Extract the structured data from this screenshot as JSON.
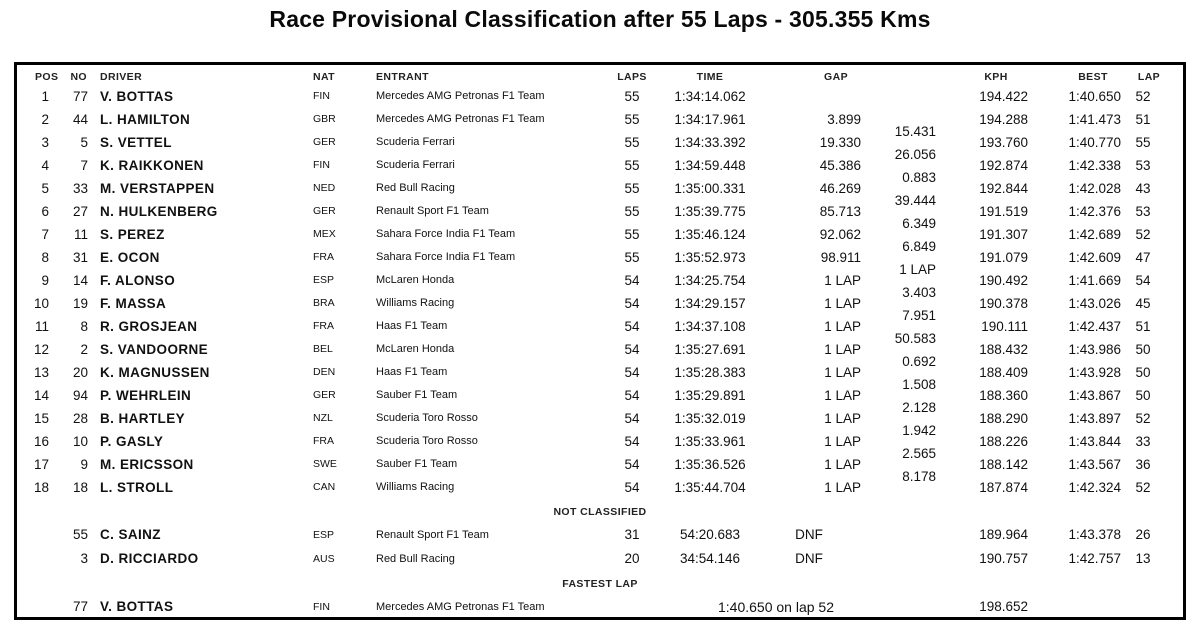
{
  "title": "Race Provisional Classification after 55 Laps - 305.355 Kms",
  "table": {
    "headers": {
      "pos": "POS",
      "no": "NO",
      "driver": "DRIVER",
      "nat": "NAT",
      "entrant": "ENTRANT",
      "laps": "LAPS",
      "time": "TIME",
      "gap": "GAP",
      "kph": "KPH",
      "best": "BEST",
      "lap": "LAP"
    },
    "classified_rows": [
      {
        "pos": "1",
        "no": "77",
        "driver": "V. BOTTAS",
        "nat": "FIN",
        "entrant": "Mercedes AMG Petronas F1 Team",
        "laps": "55",
        "time": "1:34:14.062",
        "gap": "",
        "interval": "",
        "kph": "194.422",
        "best": "1:40.650",
        "lap": "52"
      },
      {
        "pos": "2",
        "no": "44",
        "driver": "L. HAMILTON",
        "nat": "GBR",
        "entrant": "Mercedes AMG Petronas F1 Team",
        "laps": "55",
        "time": "1:34:17.961",
        "gap": "3.899",
        "interval": "15.431",
        "kph": "194.288",
        "best": "1:41.473",
        "lap": "51"
      },
      {
        "pos": "3",
        "no": "5",
        "driver": "S. VETTEL",
        "nat": "GER",
        "entrant": "Scuderia Ferrari",
        "laps": "55",
        "time": "1:34:33.392",
        "gap": "19.330",
        "interval": "26.056",
        "kph": "193.760",
        "best": "1:40.770",
        "lap": "55"
      },
      {
        "pos": "4",
        "no": "7",
        "driver": "K. RAIKKONEN",
        "nat": "FIN",
        "entrant": "Scuderia Ferrari",
        "laps": "55",
        "time": "1:34:59.448",
        "gap": "45.386",
        "interval": "0.883",
        "kph": "192.874",
        "best": "1:42.338",
        "lap": "53"
      },
      {
        "pos": "5",
        "no": "33",
        "driver": "M. VERSTAPPEN",
        "nat": "NED",
        "entrant": "Red Bull Racing",
        "laps": "55",
        "time": "1:35:00.331",
        "gap": "46.269",
        "interval": "39.444",
        "kph": "192.844",
        "best": "1:42.028",
        "lap": "43"
      },
      {
        "pos": "6",
        "no": "27",
        "driver": "N. HULKENBERG",
        "nat": "GER",
        "entrant": "Renault Sport F1 Team",
        "laps": "55",
        "time": "1:35:39.775",
        "gap": "85.713",
        "interval": "6.349",
        "kph": "191.519",
        "best": "1:42.376",
        "lap": "53"
      },
      {
        "pos": "7",
        "no": "11",
        "driver": "S. PEREZ",
        "nat": "MEX",
        "entrant": "Sahara Force India F1 Team",
        "laps": "55",
        "time": "1:35:46.124",
        "gap": "92.062",
        "interval": "6.849",
        "kph": "191.307",
        "best": "1:42.689",
        "lap": "52"
      },
      {
        "pos": "8",
        "no": "31",
        "driver": "E. OCON",
        "nat": "FRA",
        "entrant": "Sahara Force India F1 Team",
        "laps": "55",
        "time": "1:35:52.973",
        "gap": "98.911",
        "interval": "1 LAP",
        "kph": "191.079",
        "best": "1:42.609",
        "lap": "47"
      },
      {
        "pos": "9",
        "no": "14",
        "driver": "F. ALONSO",
        "nat": "ESP",
        "entrant": "McLaren Honda",
        "laps": "54",
        "time": "1:34:25.754",
        "gap": "1 LAP",
        "interval": "3.403",
        "kph": "190.492",
        "best": "1:41.669",
        "lap": "54"
      },
      {
        "pos": "10",
        "no": "19",
        "driver": "F. MASSA",
        "nat": "BRA",
        "entrant": "Williams Racing",
        "laps": "54",
        "time": "1:34:29.157",
        "gap": "1 LAP",
        "interval": "7.951",
        "kph": "190.378",
        "best": "1:43.026",
        "lap": "45"
      },
      {
        "pos": "11",
        "no": "8",
        "driver": "R. GROSJEAN",
        "nat": "FRA",
        "entrant": "Haas F1 Team",
        "laps": "54",
        "time": "1:34:37.108",
        "gap": "1 LAP",
        "interval": "50.583",
        "kph": "190.111",
        "best": "1:42.437",
        "lap": "51"
      },
      {
        "pos": "12",
        "no": "2",
        "driver": "S. VANDOORNE",
        "nat": "BEL",
        "entrant": "McLaren Honda",
        "laps": "54",
        "time": "1:35:27.691",
        "gap": "1 LAP",
        "interval": "0.692",
        "kph": "188.432",
        "best": "1:43.986",
        "lap": "50"
      },
      {
        "pos": "13",
        "no": "20",
        "driver": "K. MAGNUSSEN",
        "nat": "DEN",
        "entrant": "Haas F1 Team",
        "laps": "54",
        "time": "1:35:28.383",
        "gap": "1 LAP",
        "interval": "1.508",
        "kph": "188.409",
        "best": "1:43.928",
        "lap": "50"
      },
      {
        "pos": "14",
        "no": "94",
        "driver": "P. WEHRLEIN",
        "nat": "GER",
        "entrant": "Sauber F1 Team",
        "laps": "54",
        "time": "1:35:29.891",
        "gap": "1 LAP",
        "interval": "2.128",
        "kph": "188.360",
        "best": "1:43.867",
        "lap": "50"
      },
      {
        "pos": "15",
        "no": "28",
        "driver": "B. HARTLEY",
        "nat": "NZL",
        "entrant": "Scuderia Toro Rosso",
        "laps": "54",
        "time": "1:35:32.019",
        "gap": "1 LAP",
        "interval": "1.942",
        "kph": "188.290",
        "best": "1:43.897",
        "lap": "52"
      },
      {
        "pos": "16",
        "no": "10",
        "driver": "P. GASLY",
        "nat": "FRA",
        "entrant": "Scuderia Toro Rosso",
        "laps": "54",
        "time": "1:35:33.961",
        "gap": "1 LAP",
        "interval": "2.565",
        "kph": "188.226",
        "best": "1:43.844",
        "lap": "33"
      },
      {
        "pos": "17",
        "no": "9",
        "driver": "M. ERICSSON",
        "nat": "SWE",
        "entrant": "Sauber F1 Team",
        "laps": "54",
        "time": "1:35:36.526",
        "gap": "1 LAP",
        "interval": "8.178",
        "kph": "188.142",
        "best": "1:43.567",
        "lap": "36"
      },
      {
        "pos": "18",
        "no": "18",
        "driver": "L. STROLL",
        "nat": "CAN",
        "entrant": "Williams Racing",
        "laps": "54",
        "time": "1:35:44.704",
        "gap": "1 LAP",
        "interval": "",
        "kph": "187.874",
        "best": "1:42.324",
        "lap": "52"
      }
    ],
    "not_classified_label": "NOT CLASSIFIED",
    "not_classified_rows": [
      {
        "pos": "",
        "no": "55",
        "driver": "C. SAINZ",
        "nat": "ESP",
        "entrant": "Renault Sport F1 Team",
        "laps": "31",
        "time": "54:20.683",
        "gap": "DNF",
        "interval": "",
        "kph": "189.964",
        "best": "1:43.378",
        "lap": "26"
      },
      {
        "pos": "",
        "no": "3",
        "driver": "D. RICCIARDO",
        "nat": "AUS",
        "entrant": "Red Bull Racing",
        "laps": "20",
        "time": "34:54.146",
        "gap": "DNF",
        "interval": "",
        "kph": "190.757",
        "best": "1:42.757",
        "lap": "13"
      }
    ],
    "fastest_lap_label": "FASTEST LAP",
    "fastest_lap_row": {
      "no": "77",
      "driver": "V. BOTTAS",
      "nat": "FIN",
      "entrant": "Mercedes AMG Petronas F1 Team",
      "time": "1:40.650 on lap 52",
      "kph": "198.652"
    }
  }
}
